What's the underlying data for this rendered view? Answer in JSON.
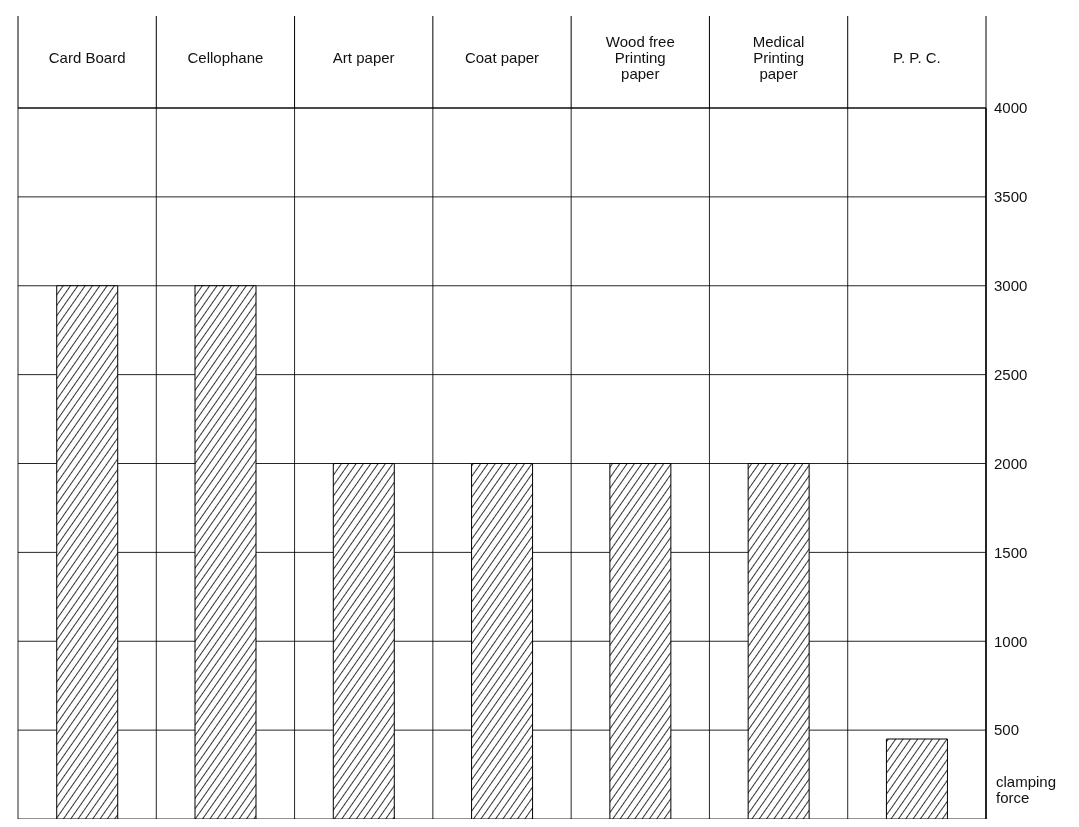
{
  "chart_data": {
    "type": "bar",
    "categories": [
      "Card Board",
      "Cellophane",
      "Art paper",
      "Coat paper",
      "Wood free Printing paper",
      "Medical Printing paper",
      "P. P. C."
    ],
    "values": [
      3000,
      3000,
      2000,
      2000,
      2000,
      2000,
      450
    ],
    "color": "#000000",
    "ylabel": "clamping force",
    "ylim": [
      0,
      4000
    ],
    "yticks": [
      500,
      1000,
      1500,
      2000,
      2500,
      3000,
      3500,
      4000
    ],
    "grid": true
  }
}
